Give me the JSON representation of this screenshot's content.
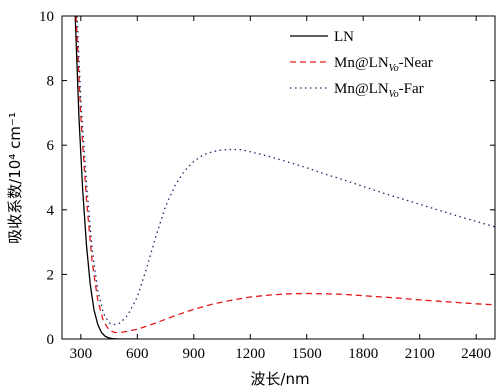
{
  "chart_data": {
    "type": "line",
    "xlabel": "波长/nm",
    "ylabel": "吸收系数/10⁴ cm⁻¹",
    "xlim": [
      200,
      2500
    ],
    "ylim": [
      0,
      10
    ],
    "xticks": [
      300,
      600,
      900,
      1200,
      1500,
      1800,
      2100,
      2400
    ],
    "yticks": [
      0,
      2,
      4,
      6,
      8,
      10
    ],
    "grid": false,
    "legend_position": "top-right",
    "series": [
      {
        "name": "LN",
        "label_main": "LN",
        "label_sub": "",
        "label_suffix": "",
        "color": "#000000",
        "dash": "solid",
        "x": [
          270,
          290,
          310,
          330,
          350,
          370,
          390,
          410,
          430,
          450,
          470,
          500,
          550,
          600
        ],
        "y": [
          10.0,
          6.9,
          4.6,
          2.9,
          1.7,
          0.9,
          0.45,
          0.2,
          0.08,
          0.03,
          0.01,
          0.0,
          0.0,
          0.0
        ]
      },
      {
        "name": "Mn@LNVo-Near",
        "label_main": "Mn@LN",
        "label_sub": "Vo",
        "label_suffix": "-Near",
        "color": "#e41a1c",
        "dash": "dashed",
        "x": [
          275,
          300,
          330,
          360,
          390,
          420,
          450,
          480,
          500,
          530,
          600,
          700,
          800,
          900,
          1000,
          1100,
          1200,
          1300,
          1400,
          1500,
          1600,
          1700,
          1800,
          1900,
          2000,
          2100,
          2200,
          2300,
          2400,
          2500
        ],
        "y": [
          10.0,
          6.9,
          4.3,
          2.4,
          1.2,
          0.55,
          0.28,
          0.2,
          0.2,
          0.22,
          0.3,
          0.5,
          0.72,
          0.92,
          1.08,
          1.2,
          1.3,
          1.36,
          1.4,
          1.41,
          1.4,
          1.38,
          1.34,
          1.3,
          1.26,
          1.21,
          1.17,
          1.13,
          1.09,
          1.06
        ]
      },
      {
        "name": "Mn@LNVo-Far",
        "label_main": "Mn@LN",
        "label_sub": "Vo",
        "label_suffix": "-Far",
        "color": "#1a2a6c",
        "dash": "dotted",
        "x": [
          280,
          300,
          330,
          360,
          390,
          420,
          450,
          480,
          510,
          550,
          600,
          650,
          700,
          750,
          800,
          850,
          900,
          950,
          1000,
          1050,
          1100,
          1150,
          1200,
          1300,
          1400,
          1500,
          1600,
          1700,
          1800,
          1900,
          2000,
          2100,
          2200,
          2300,
          2400,
          2500
        ],
        "y": [
          10.0,
          7.4,
          4.8,
          2.8,
          1.5,
          0.8,
          0.5,
          0.45,
          0.5,
          0.75,
          1.3,
          2.2,
          3.2,
          4.1,
          4.75,
          5.2,
          5.5,
          5.7,
          5.8,
          5.85,
          5.87,
          5.86,
          5.8,
          5.65,
          5.48,
          5.3,
          5.1,
          4.92,
          4.72,
          4.53,
          4.35,
          4.17,
          3.99,
          3.81,
          3.64,
          3.47
        ]
      }
    ]
  }
}
